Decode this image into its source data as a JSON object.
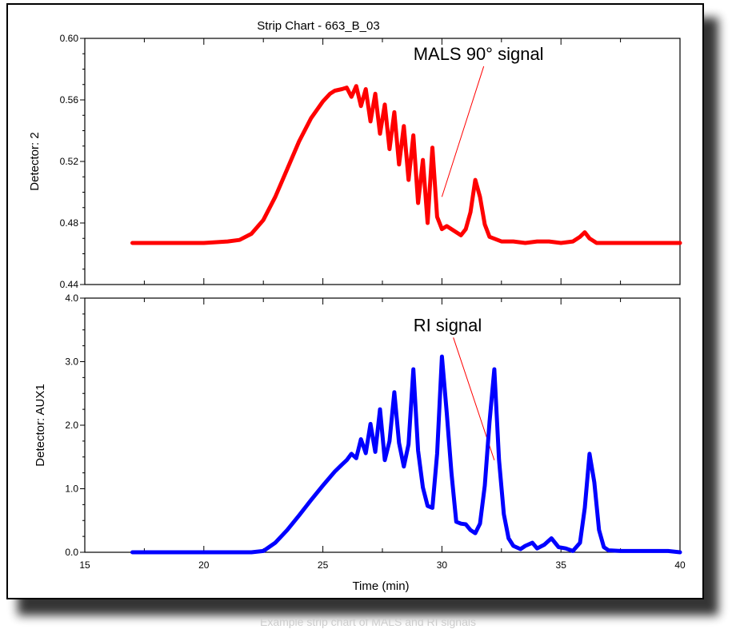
{
  "chart_data": [
    {
      "type": "line",
      "title": "Strip Chart - 663_B_03",
      "ylabel": "Detector:  2",
      "xlabel": "",
      "xlim": [
        15,
        40
      ],
      "ylim": [
        0.44,
        0.6
      ],
      "xticks": [
        15,
        20,
        25,
        30,
        35,
        40
      ],
      "yticks": [
        0.44,
        0.48,
        0.52,
        0.56,
        0.6
      ],
      "ytick_labels": [
        "0.44",
        "0.48",
        "0.52",
        "0.56",
        "0.60"
      ],
      "annotation": {
        "text": "MALS 90° signal",
        "x": 28.8,
        "y": 0.586,
        "arrow_to": [
          30.0,
          0.497
        ]
      },
      "series": [
        {
          "name": "MALS 90° signal",
          "color": "#ff0000",
          "x": [
            17.0,
            18.0,
            19.0,
            20.0,
            21.0,
            21.5,
            22.0,
            22.5,
            23.0,
            23.5,
            24.0,
            24.5,
            25.0,
            25.3,
            25.5,
            25.8,
            26.0,
            26.2,
            26.4,
            26.6,
            26.8,
            27.0,
            27.2,
            27.4,
            27.6,
            27.8,
            28.0,
            28.2,
            28.4,
            28.6,
            28.8,
            29.0,
            29.2,
            29.4,
            29.6,
            29.8,
            30.0,
            30.2,
            30.5,
            30.8,
            31.0,
            31.2,
            31.4,
            31.6,
            31.8,
            32.0,
            32.5,
            33.0,
            33.5,
            34.0,
            34.5,
            35.0,
            35.5,
            35.8,
            36.0,
            36.2,
            36.5,
            37.0,
            37.5,
            38.0,
            38.5,
            39.0,
            39.5,
            40.0
          ],
          "y": [
            0.467,
            0.467,
            0.467,
            0.467,
            0.468,
            0.469,
            0.473,
            0.482,
            0.497,
            0.515,
            0.533,
            0.548,
            0.559,
            0.564,
            0.566,
            0.567,
            0.568,
            0.562,
            0.569,
            0.556,
            0.567,
            0.546,
            0.564,
            0.538,
            0.557,
            0.528,
            0.552,
            0.518,
            0.543,
            0.508,
            0.537,
            0.493,
            0.521,
            0.48,
            0.529,
            0.484,
            0.476,
            0.478,
            0.475,
            0.472,
            0.476,
            0.487,
            0.508,
            0.497,
            0.479,
            0.471,
            0.468,
            0.468,
            0.467,
            0.468,
            0.468,
            0.467,
            0.468,
            0.471,
            0.474,
            0.47,
            0.467,
            0.467,
            0.467,
            0.467,
            0.467,
            0.467,
            0.467,
            0.467
          ]
        }
      ]
    },
    {
      "type": "line",
      "title": "",
      "ylabel": "Detector:  AUX1",
      "xlabel": "Time (min)",
      "xlim": [
        15,
        40
      ],
      "ylim": [
        0.0,
        4.0
      ],
      "xticks": [
        15,
        20,
        25,
        30,
        35,
        40
      ],
      "yticks": [
        0.0,
        1.0,
        2.0,
        3.0,
        4.0
      ],
      "xtick_labels": [
        "15",
        "20",
        "25",
        "30",
        "35",
        "40"
      ],
      "ytick_labels": [
        "0.0",
        "1.0",
        "2.0",
        "3.0",
        "4.0"
      ],
      "annotation": {
        "text": "RI signal",
        "x": 28.8,
        "y": 3.48,
        "arrow_to": [
          32.2,
          1.45
        ]
      },
      "series": [
        {
          "name": "RI signal",
          "color": "#0000ff",
          "x": [
            17.0,
            18.0,
            19.0,
            20.0,
            21.0,
            22.0,
            22.5,
            23.0,
            23.5,
            24.0,
            24.5,
            25.0,
            25.5,
            25.8,
            26.0,
            26.2,
            26.4,
            26.6,
            26.8,
            27.0,
            27.2,
            27.4,
            27.6,
            27.8,
            28.0,
            28.2,
            28.4,
            28.6,
            28.8,
            29.0,
            29.2,
            29.4,
            29.6,
            29.8,
            30.0,
            30.2,
            30.4,
            30.6,
            30.8,
            31.0,
            31.2,
            31.4,
            31.6,
            31.8,
            32.0,
            32.2,
            32.4,
            32.6,
            32.8,
            33.0,
            33.3,
            33.5,
            33.8,
            34.0,
            34.3,
            34.6,
            34.9,
            35.2,
            35.5,
            35.8,
            36.0,
            36.2,
            36.4,
            36.6,
            36.8,
            37.0,
            37.5,
            38.0,
            38.5,
            39.0,
            39.5,
            40.0
          ],
          "y": [
            0.0,
            0.0,
            0.0,
            0.0,
            0.0,
            0.0,
            0.02,
            0.15,
            0.35,
            0.58,
            0.82,
            1.05,
            1.27,
            1.38,
            1.45,
            1.55,
            1.48,
            1.78,
            1.56,
            2.02,
            1.58,
            2.25,
            1.45,
            1.75,
            2.52,
            1.72,
            1.35,
            1.7,
            2.88,
            1.6,
            1.02,
            0.73,
            0.7,
            1.55,
            3.08,
            2.2,
            1.25,
            0.48,
            0.45,
            0.44,
            0.35,
            0.3,
            0.45,
            1.05,
            2.05,
            2.88,
            1.45,
            0.6,
            0.22,
            0.1,
            0.05,
            0.1,
            0.15,
            0.06,
            0.12,
            0.22,
            0.08,
            0.06,
            0.02,
            0.15,
            0.7,
            1.55,
            1.1,
            0.35,
            0.08,
            0.03,
            0.02,
            0.02,
            0.02,
            0.02,
            0.02,
            0.0
          ]
        }
      ]
    }
  ],
  "caption": "Example strip chart of MALS and RI signals"
}
